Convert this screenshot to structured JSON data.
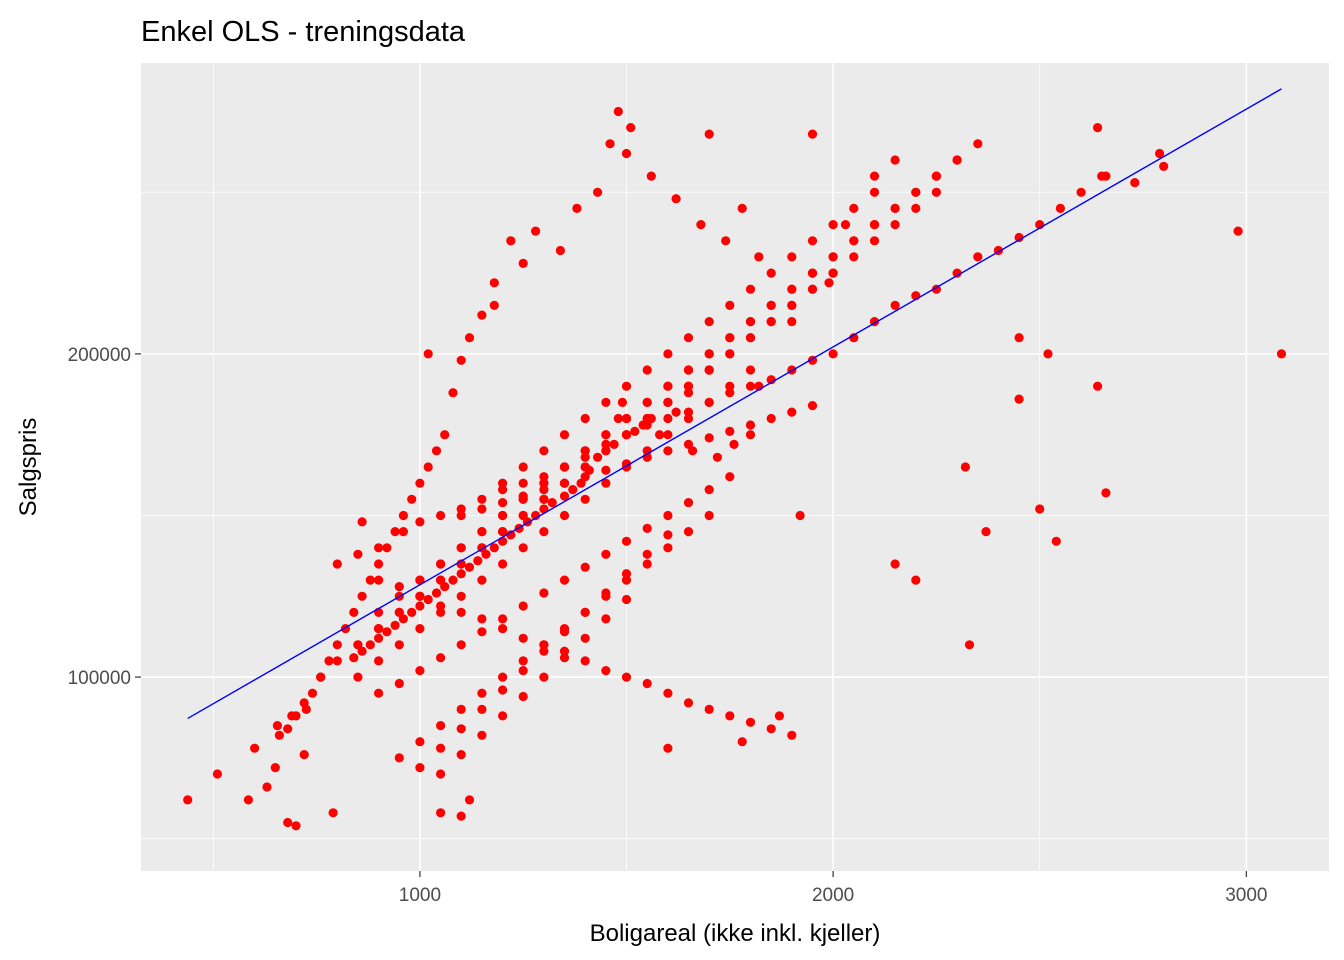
{
  "chart_data": {
    "type": "scatter",
    "title": "Enkel OLS - treningsdata",
    "xlabel": "Boligareal (ikke inkl. kjeller)",
    "ylabel": "Salgspris",
    "xlim": [
      325,
      3200
    ],
    "ylim": [
      40000,
      290000
    ],
    "x_ticks": [
      1000,
      2000,
      3000
    ],
    "x_tick_labels": [
      "1000",
      "2000",
      "3000"
    ],
    "x_minor": [
      500,
      1500,
      2500
    ],
    "y_ticks": [
      100000,
      200000
    ],
    "y_tick_labels": [
      "100000",
      "200000"
    ],
    "y_minor": [
      50000,
      150000,
      250000
    ],
    "grid": true,
    "panel_color": "#ebebeb",
    "grid_color": "#ffffff",
    "point_color": "#ff0000",
    "line_color": "#0000ff",
    "regression_line": {
      "x": [
        438,
        3085
      ],
      "y": [
        87200,
        282000
      ]
    },
    "points": {
      "x": [
        438,
        510,
        585,
        600,
        630,
        650,
        655,
        660,
        680,
        690,
        700,
        720,
        725,
        760,
        790,
        1020,
        1050,
        1100,
        1120,
        1180,
        1500,
        1700,
        1780,
        1600,
        1870,
        1920,
        2150,
        2200,
        2370,
        2520,
        2540,
        2330,
        2450,
        2640,
        2660,
        2980,
        3085,
        2800,
        2790,
        2730,
        2660,
        2640,
        2500,
        2450,
        2320,
        2250,
        2150,
        2100,
        2030,
        1990,
        1950,
        1900,
        1820,
        1780,
        1740,
        1680,
        1620,
        1560,
        1510,
        1480,
        1460,
        1430,
        1380,
        1340,
        1280,
        1250,
        1220,
        1180,
        1150,
        1120,
        1100,
        1080,
        1060,
        1040,
        1020,
        1000,
        980,
        960,
        940,
        920,
        900,
        880,
        860,
        840,
        820,
        800,
        780,
        760,
        740,
        720,
        700,
        680,
        860,
        900,
        960,
        1000,
        1050,
        1100,
        1150,
        1200,
        1250,
        1300,
        1350,
        1400,
        1450,
        1500,
        1550,
        1600,
        1650,
        1700,
        1750,
        1800,
        1850,
        1900,
        1950,
        2000,
        2050,
        2100,
        2150,
        2200,
        2250,
        2300,
        2350,
        2400,
        2450,
        2500,
        2550,
        2600,
        2650,
        1200,
        1250,
        1300,
        1350,
        1400,
        1450,
        1500,
        1550,
        1600,
        1650,
        1700,
        1750,
        1800,
        1850,
        1900,
        1950,
        2000,
        2050,
        2100,
        1000,
        1050,
        1100,
        1150,
        1200,
        1250,
        1300,
        1350,
        1400,
        1450,
        1500,
        1550,
        1600,
        1650,
        1700,
        1750,
        1800,
        1850,
        1900,
        1950,
        2000,
        2050,
        2100,
        2150,
        2200,
        2250,
        2300,
        2350,
        900,
        950,
        1000,
        1050,
        1100,
        1150,
        1200,
        1250,
        1300,
        1350,
        1400,
        1450,
        1500,
        1550,
        1600,
        1650,
        1700,
        1750,
        1800,
        1850,
        1900,
        1950,
        2000,
        2050,
        2100,
        2150,
        2200,
        2250,
        2300,
        850,
        900,
        950,
        1000,
        1050,
        1100,
        1150,
        1200,
        1250,
        1300,
        1350,
        1400,
        1450,
        1500,
        1550,
        1600,
        1650,
        1700,
        1750,
        1800,
        1850,
        1900,
        1950,
        2000,
        2050,
        2100,
        2150,
        2200,
        800,
        850,
        900,
        950,
        1000,
        1050,
        1100,
        1150,
        1200,
        1250,
        1300,
        1350,
        1400,
        1450,
        1500,
        1550,
        1600,
        1650,
        1700,
        1750,
        1800,
        1850,
        1900,
        1950,
        2000,
        800,
        850,
        900,
        950,
        1000,
        1050,
        1100,
        1150,
        1200,
        1250,
        1300,
        1350,
        1400,
        1450,
        1500,
        1550,
        1600,
        1650,
        1700,
        1750,
        1800,
        1850,
        1900,
        850,
        900,
        950,
        1000,
        1050,
        1100,
        1150,
        1200,
        1250,
        1300,
        1350,
        1400,
        1450,
        1500,
        1550,
        1600,
        1650,
        1700,
        1750,
        1800,
        900,
        950,
        1000,
        1050,
        1100,
        1150,
        1200,
        1250,
        1300,
        1350,
        1400,
        1450,
        1500,
        1550,
        1600,
        1650,
        1700,
        1750,
        950,
        1000,
        1050,
        1100,
        1150,
        1200,
        1250,
        1300,
        1350,
        1400,
        1450,
        1500,
        1550,
        1600,
        1650,
        1700,
        1000,
        1050,
        1100,
        1150,
        1200,
        1250,
        1300,
        1350,
        1400,
        1450,
        1500,
        1550,
        1600,
        1050,
        1100,
        1150,
        1200,
        1250,
        1300,
        1350,
        1400,
        1450,
        1500,
        1100,
        1150,
        1200,
        1250,
        1300,
        1350,
        1400,
        1450,
        1500,
        1550,
        1600,
        1650,
        1700,
        1750,
        1800,
        1850,
        1900,
        1950,
        1480,
        1490,
        1540,
        1580,
        1620,
        1660,
        1720,
        1760,
        1800,
        1820,
        1700,
        1650,
        1600,
        1560,
        1520,
        1470,
        1430,
        1410,
        1390,
        1370,
        1350,
        1320,
        1300,
        1280,
        1260,
        1240,
        1220,
        1200,
        1180,
        1160,
        1140,
        1120,
        1100,
        1080,
        1060,
        1040,
        1020,
        1000,
        980,
        960,
        940,
        920,
        900,
        880,
        860,
        840
      ],
      "y": [
        62000,
        70000,
        62000,
        78000,
        66000,
        72000,
        85000,
        82000,
        55000,
        88000,
        54000,
        76000,
        90000,
        100000,
        58000,
        200000,
        58000,
        57000,
        62000,
        215000,
        262000,
        268000,
        80000,
        78000,
        88000,
        150000,
        135000,
        130000,
        145000,
        200000,
        142000,
        110000,
        205000,
        270000,
        255000,
        238000,
        200000,
        258000,
        262000,
        253000,
        157000,
        190000,
        152000,
        186000,
        165000,
        250000,
        260000,
        255000,
        240000,
        222000,
        268000,
        210000,
        230000,
        245000,
        235000,
        240000,
        248000,
        255000,
        270000,
        275000,
        265000,
        250000,
        245000,
        232000,
        238000,
        228000,
        235000,
        222000,
        212000,
        205000,
        198000,
        188000,
        175000,
        170000,
        165000,
        160000,
        155000,
        150000,
        145000,
        140000,
        135000,
        130000,
        125000,
        120000,
        115000,
        110000,
        105000,
        100000,
        95000,
        92000,
        88000,
        84000,
        148000,
        140000,
        145000,
        148000,
        150000,
        152000,
        155000,
        158000,
        160000,
        162000,
        165000,
        168000,
        172000,
        175000,
        178000,
        180000,
        182000,
        185000,
        188000,
        190000,
        192000,
        195000,
        198000,
        200000,
        205000,
        210000,
        215000,
        218000,
        220000,
        225000,
        230000,
        232000,
        236000,
        240000,
        245000,
        250000,
        255000,
        160000,
        165000,
        170000,
        175000,
        180000,
        185000,
        190000,
        195000,
        200000,
        205000,
        210000,
        215000,
        220000,
        225000,
        230000,
        235000,
        240000,
        245000,
        250000,
        130000,
        135000,
        140000,
        145000,
        150000,
        155000,
        160000,
        165000,
        170000,
        175000,
        180000,
        185000,
        190000,
        195000,
        200000,
        205000,
        210000,
        215000,
        220000,
        225000,
        230000,
        235000,
        240000,
        245000,
        250000,
        255000,
        260000,
        265000,
        120000,
        125000,
        130000,
        135000,
        140000,
        145000,
        150000,
        155000,
        160000,
        165000,
        170000,
        175000,
        180000,
        185000,
        190000,
        195000,
        200000,
        205000,
        210000,
        215000,
        220000,
        225000,
        230000,
        235000,
        240000,
        245000,
        250000,
        255000,
        260000,
        110000,
        115000,
        120000,
        125000,
        130000,
        135000,
        140000,
        145000,
        150000,
        155000,
        160000,
        165000,
        170000,
        175000,
        180000,
        185000,
        190000,
        195000,
        200000,
        205000,
        210000,
        215000,
        220000,
        225000,
        230000,
        235000,
        240000,
        245000,
        105000,
        110000,
        115000,
        120000,
        125000,
        130000,
        135000,
        140000,
        145000,
        150000,
        155000,
        160000,
        165000,
        170000,
        175000,
        180000,
        185000,
        190000,
        195000,
        200000,
        205000,
        210000,
        215000,
        220000,
        225000,
        135000,
        138000,
        130000,
        128000,
        125000,
        122000,
        120000,
        118000,
        115000,
        112000,
        110000,
        108000,
        105000,
        102000,
        100000,
        98000,
        95000,
        92000,
        90000,
        88000,
        86000,
        84000,
        82000,
        100000,
        105000,
        110000,
        115000,
        120000,
        125000,
        130000,
        135000,
        140000,
        145000,
        150000,
        155000,
        160000,
        165000,
        170000,
        175000,
        180000,
        185000,
        190000,
        195000,
        95000,
        98000,
        102000,
        106000,
        110000,
        114000,
        118000,
        122000,
        126000,
        130000,
        134000,
        138000,
        142000,
        146000,
        150000,
        154000,
        158000,
        162000,
        75000,
        80000,
        85000,
        90000,
        95000,
        100000,
        105000,
        110000,
        115000,
        120000,
        125000,
        130000,
        135000,
        140000,
        145000,
        150000,
        72000,
        78000,
        84000,
        90000,
        96000,
        102000,
        108000,
        114000,
        120000,
        126000,
        132000,
        138000,
        144000,
        70000,
        76000,
        82000,
        88000,
        94000,
        100000,
        106000,
        112000,
        118000,
        124000,
        150000,
        152000,
        154000,
        156000,
        158000,
        160000,
        162000,
        164000,
        166000,
        168000,
        170000,
        172000,
        174000,
        176000,
        178000,
        180000,
        182000,
        184000,
        180000,
        185000,
        178000,
        175000,
        182000,
        170000,
        168000,
        172000,
        175000,
        190000,
        195000,
        188000,
        185000,
        180000,
        176000,
        172000,
        168000,
        164000,
        160000,
        158000,
        156000,
        154000,
        152000,
        150000,
        148000,
        146000,
        144000,
        142000,
        140000,
        138000,
        136000,
        134000,
        132000,
        130000,
        128000,
        126000,
        124000,
        122000,
        120000,
        118000,
        116000,
        114000,
        112000,
        110000,
        108000,
        106000
      ]
    }
  }
}
